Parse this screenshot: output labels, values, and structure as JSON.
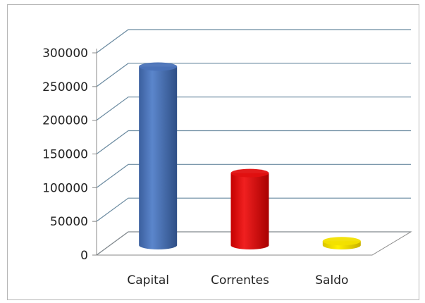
{
  "chart_data": {
    "type": "bar",
    "style": "3d-cylinder",
    "categories": [
      "Capital",
      "Correntes",
      "Saldo"
    ],
    "values": [
      265000,
      107000,
      6000
    ],
    "ylim": [
      0,
      300000
    ],
    "yticks": [
      "0",
      "50000",
      "100000",
      "150000",
      "200000",
      "250000",
      "300000"
    ],
    "grid": true,
    "legend": "none",
    "colors": {
      "Capital": "#4a72b8",
      "Correntes": "#e01010",
      "Saldo": "#f2e000",
      "grid": "#6a8aa0",
      "axis": "#888888"
    }
  }
}
